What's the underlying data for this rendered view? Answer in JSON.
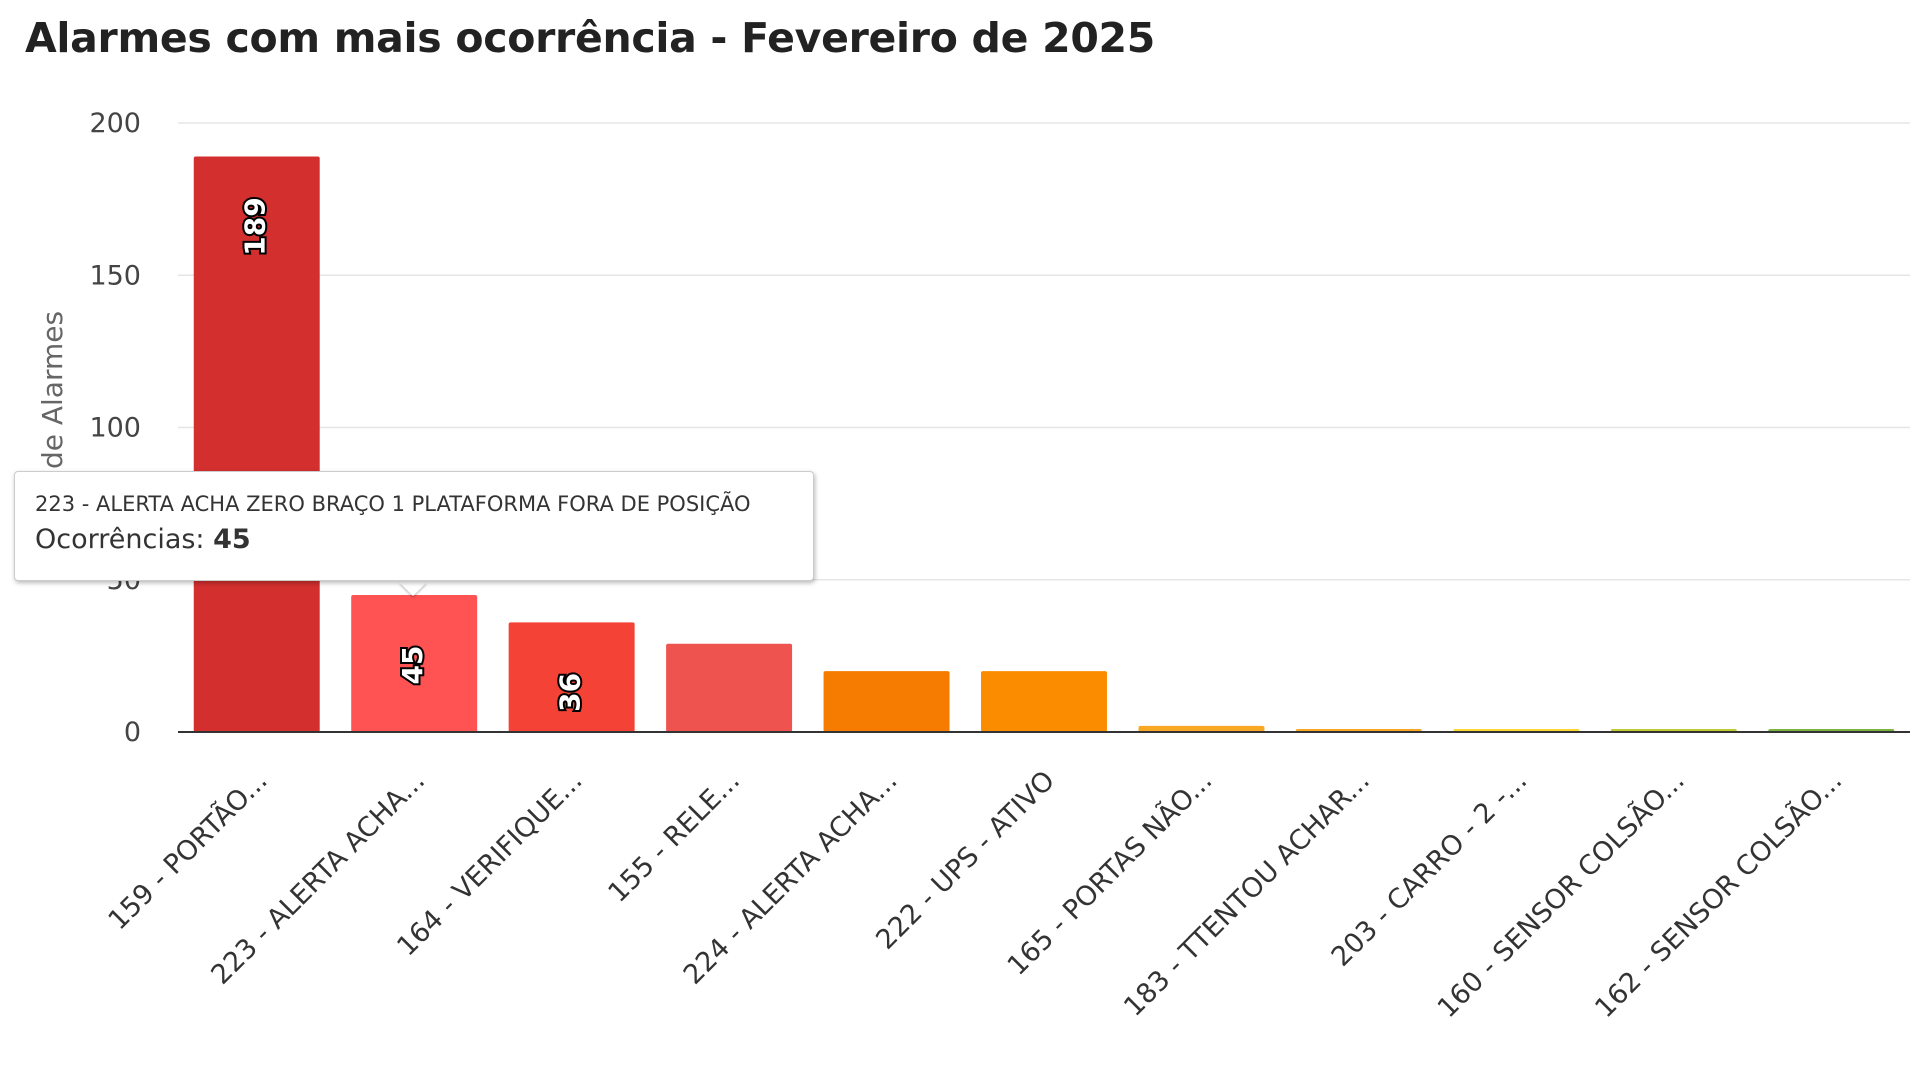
{
  "chart_data": {
    "type": "bar",
    "title": "Alarmes com mais ocorrência - Fevereiro de 2025",
    "ylabel": "de Alarmes",
    "xlabel": "",
    "ylim": [
      0,
      200
    ],
    "yticks": [
      0,
      50,
      100,
      150,
      200
    ],
    "grid": true,
    "legend": "none",
    "categories": [
      "159 - PORTÃO...",
      "223 - ALERTA ACHA...",
      "164 - VERIFIQUE...",
      "155 - RELE...",
      "224 - ALERTA ACHA...",
      "222 - UPS - ATIVO",
      "165 - PORTAS NÃO...",
      "183 - TTENTOU ACHAR...",
      "203 - CARRO - 2 -...",
      "160 - SENSOR COLSÃO...",
      "162 - SENSOR COLSÃO..."
    ],
    "values": [
      189,
      45,
      36,
      29,
      20,
      20,
      2,
      1,
      1,
      1,
      1
    ],
    "data_labels": [
      "189",
      "45",
      "36",
      "",
      "",
      "",
      "",
      "",
      "",
      "",
      ""
    ],
    "colors": [
      "#d32f2f",
      "#ff5252",
      "#f44336",
      "#ef5350",
      "#f57c00",
      "#fb8c00",
      "#f9a825",
      "#f9a825",
      "#fdd835",
      "#c0ca33",
      "#7cb342"
    ],
    "axis_color": "#333333",
    "grid_color": "#e6e6e6"
  },
  "tooltip": {
    "title": "223 - ALERTA ACHA ZERO BRAÇO 1 PLATAFORMA FORA DE POSIÇÃO",
    "label": "Ocorrências: ",
    "value": "45"
  }
}
